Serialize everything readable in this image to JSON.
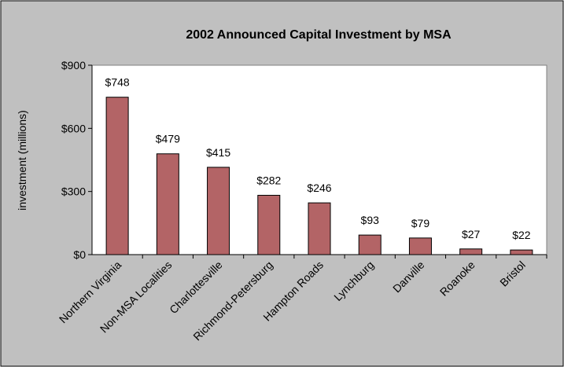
{
  "chart_data": {
    "type": "bar",
    "title": "2002 Announced Capital Investment by MSA",
    "y_label": "investment (millions)",
    "categories": [
      "Northern Virginia",
      "Non-MSA Localities",
      "Charlottesville",
      "Richmond-Petersburg",
      "Hampton Roads",
      "Lynchburg",
      "Danville",
      "Roanoke",
      "Bristol"
    ],
    "values": [
      748,
      479,
      415,
      282,
      246,
      93,
      79,
      27,
      22
    ],
    "value_labels": [
      "$748",
      "$479",
      "$415",
      "$282",
      "$246",
      "$93",
      "$79",
      "$27",
      "$22"
    ],
    "color": "#b36466",
    "ylim": [
      0,
      900
    ],
    "yticks": [
      {
        "value": 0,
        "label": "$0"
      },
      {
        "value": 300,
        "label": "$300"
      },
      {
        "value": 600,
        "label": "$600"
      },
      {
        "value": 900,
        "label": "$900"
      }
    ],
    "grid": false
  }
}
